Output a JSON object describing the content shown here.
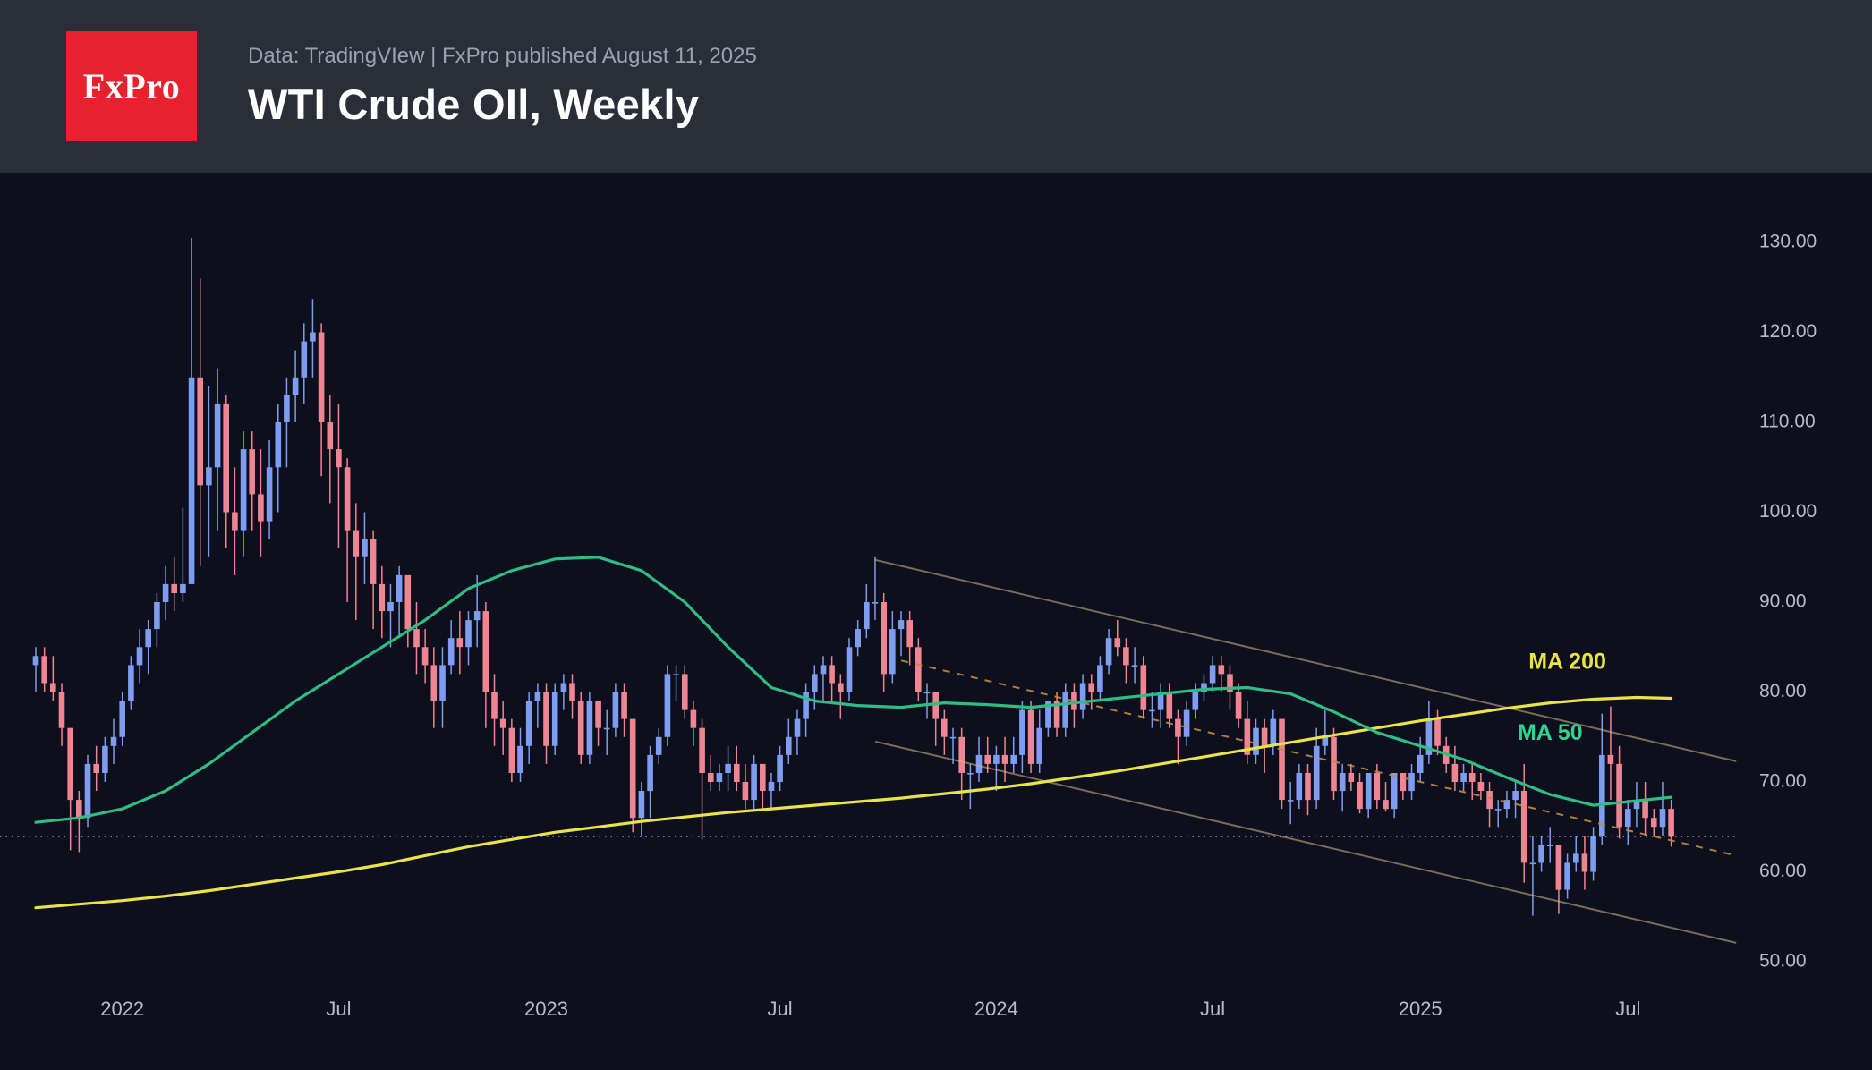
{
  "header": {
    "logo_text": "FxPro",
    "subtitle": "Data: TradingVIew | FxPro published August 11, 2025",
    "title": "WTI Crude OIl, Weekly"
  },
  "chart_data": {
    "type": "candlestick",
    "symbol": "WTI Crude Oil",
    "timeframe": "Weekly",
    "title": "WTI Crude OIl, Weekly",
    "grid": "off",
    "legend_position": "none",
    "price_range": [
      50,
      130
    ],
    "current_price_line": 63.9,
    "y_ticks": [
      {
        "value": 130,
        "label": "130.00"
      },
      {
        "value": 120,
        "label": "120.00"
      },
      {
        "value": 110,
        "label": "110.00"
      },
      {
        "value": 100,
        "label": "100.00"
      },
      {
        "value": 90,
        "label": "90.00"
      },
      {
        "value": 80,
        "label": "80.00"
      },
      {
        "value": 70,
        "label": "70.00"
      },
      {
        "value": 60,
        "label": "60.00"
      },
      {
        "value": 50,
        "label": "50.00"
      }
    ],
    "x_ticks": [
      {
        "label": "2022",
        "index": 10
      },
      {
        "label": "Jul",
        "index": 35
      },
      {
        "label": "2023",
        "index": 59
      },
      {
        "label": "Jul",
        "index": 86
      },
      {
        "label": "2024",
        "index": 111
      },
      {
        "label": "Jul",
        "index": 136
      },
      {
        "label": "2025",
        "index": 160
      },
      {
        "label": "Jul",
        "index": 184
      }
    ],
    "candles": [
      [
        83,
        85,
        80,
        84
      ],
      [
        84,
        85,
        80,
        81
      ],
      [
        81,
        84,
        79,
        80
      ],
      [
        80,
        81,
        74,
        76
      ],
      [
        76,
        76,
        62.4,
        68
      ],
      [
        68,
        69,
        62.2,
        66
      ],
      [
        66,
        73,
        65,
        72
      ],
      [
        72,
        74,
        69,
        71
      ],
      [
        71,
        75,
        70,
        74
      ],
      [
        74,
        77,
        72,
        75
      ],
      [
        75,
        80,
        74,
        79
      ],
      [
        79,
        84,
        78,
        83
      ],
      [
        83,
        87,
        81,
        85
      ],
      [
        85,
        88,
        82,
        87
      ],
      [
        87,
        91,
        85,
        90
      ],
      [
        90,
        94,
        88,
        92
      ],
      [
        92,
        95,
        89,
        91
      ],
      [
        91,
        100.5,
        90,
        92
      ],
      [
        92,
        130.5,
        92,
        115
      ],
      [
        115,
        126,
        94,
        103
      ],
      [
        103,
        114,
        95,
        105
      ],
      [
        105,
        116,
        98,
        112
      ],
      [
        112,
        113,
        96,
        100
      ],
      [
        100,
        105,
        93,
        98
      ],
      [
        98,
        109,
        95,
        107
      ],
      [
        107,
        109,
        98,
        102
      ],
      [
        102,
        107,
        95,
        99
      ],
      [
        99,
        108,
        97,
        105
      ],
      [
        105,
        112,
        100,
        110
      ],
      [
        110,
        115,
        105,
        113
      ],
      [
        113,
        118,
        110,
        115
      ],
      [
        115,
        121,
        112,
        119
      ],
      [
        119,
        123.7,
        115,
        120
      ],
      [
        120,
        121,
        104,
        110
      ],
      [
        110,
        113,
        101,
        107
      ],
      [
        107,
        112,
        96,
        105
      ],
      [
        105,
        106,
        90,
        98
      ],
      [
        98,
        101,
        88,
        95
      ],
      [
        95,
        100,
        92,
        97
      ],
      [
        97,
        98,
        87,
        92
      ],
      [
        92,
        94,
        86,
        89
      ],
      [
        89,
        92,
        85,
        90
      ],
      [
        90,
        94,
        86,
        93
      ],
      [
        93,
        93,
        85,
        87
      ],
      [
        87,
        90,
        82,
        85
      ],
      [
        85,
        87,
        81,
        83
      ],
      [
        83,
        85,
        76,
        79
      ],
      [
        79,
        85,
        76,
        83
      ],
      [
        83,
        88,
        82,
        86
      ],
      [
        86,
        89,
        82,
        85
      ],
      [
        85,
        89,
        83,
        88
      ],
      [
        88,
        93,
        85,
        89
      ],
      [
        89,
        90,
        76,
        80
      ],
      [
        80,
        82,
        74,
        77
      ],
      [
        77,
        79,
        73,
        76
      ],
      [
        76,
        77,
        70,
        71
      ],
      [
        71,
        76,
        70,
        74
      ],
      [
        74,
        80,
        72,
        79
      ],
      [
        79,
        81,
        76,
        80
      ],
      [
        80,
        81,
        72,
        74
      ],
      [
        74,
        81,
        73,
        80
      ],
      [
        80,
        82,
        78,
        81
      ],
      [
        81,
        82,
        77,
        79
      ],
      [
        79,
        80,
        72,
        73
      ],
      [
        73,
        80,
        72,
        79
      ],
      [
        79,
        79,
        74,
        76
      ],
      [
        76,
        78,
        73,
        76
      ],
      [
        76,
        81,
        75,
        80
      ],
      [
        80,
        81,
        75,
        77
      ],
      [
        77,
        77,
        64.4,
        66
      ],
      [
        66,
        70,
        64,
        69
      ],
      [
        69,
        74,
        66,
        73
      ],
      [
        73,
        76,
        72,
        75
      ],
      [
        75,
        83,
        74,
        82
      ],
      [
        82,
        83,
        79,
        82
      ],
      [
        82,
        83,
        77,
        78
      ],
      [
        78,
        79,
        74,
        76
      ],
      [
        76,
        77,
        63.6,
        71
      ],
      [
        71,
        73,
        69,
        70
      ],
      [
        70,
        72,
        69,
        71
      ],
      [
        71,
        74,
        69,
        72
      ],
      [
        72,
        74,
        69,
        70
      ],
      [
        70,
        72,
        67,
        68
      ],
      [
        68,
        73,
        67,
        72
      ],
      [
        72,
        72,
        66.8,
        69
      ],
      [
        69,
        71,
        66.9,
        70
      ],
      [
        70,
        74,
        69,
        73
      ],
      [
        73,
        77,
        72,
        75
      ],
      [
        75,
        78,
        73,
        77
      ],
      [
        77,
        81,
        75,
        80
      ],
      [
        80,
        83,
        78,
        82
      ],
      [
        82,
        84,
        79,
        83
      ],
      [
        83,
        84,
        79,
        81
      ],
      [
        81,
        82,
        77,
        80
      ],
      [
        80,
        86,
        79,
        85
      ],
      [
        85,
        88,
        84,
        87
      ],
      [
        87,
        92,
        86,
        90
      ],
      [
        90,
        95,
        88,
        90
      ],
      [
        90,
        91,
        80,
        82
      ],
      [
        82,
        89,
        81,
        87
      ],
      [
        87,
        89,
        84,
        88
      ],
      [
        88,
        89,
        83,
        85
      ],
      [
        85,
        86,
        79,
        80
      ],
      [
        80,
        81,
        77,
        80
      ],
      [
        80,
        80,
        74,
        77
      ],
      [
        77,
        78,
        73,
        75
      ],
      [
        75,
        76,
        72,
        75
      ],
      [
        75,
        76,
        68,
        71
      ],
      [
        71,
        72,
        67,
        71
      ],
      [
        71,
        75,
        70,
        73
      ],
      [
        73,
        75,
        71,
        72
      ],
      [
        72,
        74,
        69,
        73
      ],
      [
        73,
        75,
        70,
        72
      ],
      [
        72,
        75,
        71,
        73
      ],
      [
        73,
        79,
        71,
        78
      ],
      [
        78,
        79,
        71,
        72
      ],
      [
        72,
        78,
        71,
        76
      ],
      [
        76,
        79,
        75,
        79
      ],
      [
        79,
        80,
        75,
        76
      ],
      [
        76,
        81,
        75,
        80
      ],
      [
        80,
        81,
        76,
        78
      ],
      [
        78,
        82,
        77,
        81
      ],
      [
        81,
        82,
        78,
        80
      ],
      [
        80,
        84,
        79,
        83
      ],
      [
        83,
        87,
        82,
        86
      ],
      [
        86,
        88,
        84,
        85
      ],
      [
        85,
        86,
        81,
        83
      ],
      [
        83,
        85,
        81,
        83
      ],
      [
        83,
        84,
        77,
        78
      ],
      [
        78,
        80,
        76,
        78
      ],
      [
        78,
        81,
        76,
        80
      ],
      [
        80,
        81,
        76,
        77
      ],
      [
        77,
        78,
        72,
        75
      ],
      [
        75,
        79,
        74,
        78
      ],
      [
        78,
        81,
        77,
        80
      ],
      [
        80,
        82,
        79,
        81
      ],
      [
        81,
        84,
        80,
        83
      ],
      [
        83,
        84,
        80,
        82
      ],
      [
        82,
        83,
        78,
        80
      ],
      [
        80,
        81,
        76,
        77
      ],
      [
        77,
        79,
        72,
        73
      ],
      [
        73,
        77,
        72,
        76
      ],
      [
        76,
        77,
        71,
        74
      ],
      [
        74,
        78,
        73,
        77
      ],
      [
        77,
        77,
        67,
        68
      ],
      [
        68,
        70,
        65.3,
        68
      ],
      [
        68,
        72,
        67,
        71
      ],
      [
        71,
        72,
        66.3,
        68
      ],
      [
        68,
        76,
        67,
        74
      ],
      [
        74,
        78,
        73,
        75
      ],
      [
        75,
        76,
        68,
        69
      ],
      [
        69,
        72,
        66.7,
        71
      ],
      [
        71,
        72,
        69,
        70
      ],
      [
        70,
        71,
        66.5,
        67
      ],
      [
        67,
        71,
        66,
        71
      ],
      [
        71,
        72,
        67,
        68
      ],
      [
        68,
        70,
        66.7,
        67
      ],
      [
        67,
        71,
        66,
        71
      ],
      [
        71,
        71,
        68,
        69
      ],
      [
        69,
        72,
        68,
        71
      ],
      [
        71,
        75,
        70,
        73
      ],
      [
        73,
        79,
        72,
        77
      ],
      [
        77,
        78,
        73,
        74
      ],
      [
        74,
        75,
        71,
        72
      ],
      [
        72,
        74,
        69,
        70
      ],
      [
        70,
        72,
        69,
        71
      ],
      [
        71,
        72,
        68,
        70
      ],
      [
        70,
        71,
        68,
        69
      ],
      [
        69,
        70,
        65,
        67
      ],
      [
        67,
        68,
        65,
        67
      ],
      [
        67,
        69,
        66,
        68
      ],
      [
        68,
        70,
        66,
        69
      ],
      [
        69,
        72,
        58.8,
        61
      ],
      [
        61,
        64,
        55.1,
        61
      ],
      [
        61,
        64,
        60,
        63
      ],
      [
        63,
        65,
        61,
        63
      ],
      [
        63,
        63,
        55.3,
        58
      ],
      [
        58,
        62,
        57,
        61
      ],
      [
        61,
        64,
        60,
        62
      ],
      [
        62,
        64,
        58,
        60
      ],
      [
        60,
        65,
        59,
        64
      ],
      [
        64,
        77.6,
        63,
        73
      ],
      [
        73,
        78.4,
        68,
        72
      ],
      [
        72,
        74,
        63.7,
        65
      ],
      [
        65,
        68,
        63,
        67
      ],
      [
        67,
        70,
        65,
        68
      ],
      [
        68,
        70,
        64,
        66
      ],
      [
        66,
        67,
        64,
        65
      ],
      [
        65,
        70,
        64,
        67
      ],
      [
        67,
        68,
        62.8,
        63.9
      ]
    ],
    "ma50": {
      "label": "MA 50",
      "samples": [
        [
          0,
          65.5
        ],
        [
          5,
          66
        ],
        [
          10,
          67
        ],
        [
          15,
          69
        ],
        [
          20,
          72
        ],
        [
          25,
          75.5
        ],
        [
          30,
          79
        ],
        [
          35,
          82
        ],
        [
          40,
          85
        ],
        [
          45,
          88
        ],
        [
          50,
          91.5
        ],
        [
          55,
          93.5
        ],
        [
          60,
          94.8
        ],
        [
          65,
          95
        ],
        [
          70,
          93.5
        ],
        [
          75,
          90
        ],
        [
          80,
          85
        ],
        [
          85,
          80.5
        ],
        [
          90,
          79
        ],
        [
          95,
          78.5
        ],
        [
          100,
          78.3
        ],
        [
          105,
          78.8
        ],
        [
          110,
          78.6
        ],
        [
          115,
          78.3
        ],
        [
          120,
          78.8
        ],
        [
          125,
          79.3
        ],
        [
          130,
          79.8
        ],
        [
          135,
          80.3
        ],
        [
          140,
          80.5
        ],
        [
          145,
          79.8
        ],
        [
          150,
          77.8
        ],
        [
          155,
          75.5
        ],
        [
          160,
          74
        ],
        [
          165,
          72.5
        ],
        [
          170,
          70.5
        ],
        [
          175,
          68.6
        ],
        [
          180,
          67.4
        ],
        [
          185,
          67.9
        ],
        [
          189,
          68.3
        ]
      ]
    },
    "ma200": {
      "label": "MA 200",
      "samples": [
        [
          0,
          56
        ],
        [
          5,
          56.4
        ],
        [
          10,
          56.8
        ],
        [
          15,
          57.3
        ],
        [
          20,
          57.9
        ],
        [
          25,
          58.6
        ],
        [
          30,
          59.3
        ],
        [
          35,
          60
        ],
        [
          40,
          60.8
        ],
        [
          45,
          61.8
        ],
        [
          50,
          62.8
        ],
        [
          55,
          63.6
        ],
        [
          60,
          64.4
        ],
        [
          65,
          65
        ],
        [
          70,
          65.6
        ],
        [
          75,
          66.1
        ],
        [
          80,
          66.6
        ],
        [
          85,
          67
        ],
        [
          90,
          67.4
        ],
        [
          95,
          67.8
        ],
        [
          100,
          68.2
        ],
        [
          105,
          68.7
        ],
        [
          110,
          69.2
        ],
        [
          115,
          69.8
        ],
        [
          120,
          70.5
        ],
        [
          125,
          71.2
        ],
        [
          130,
          72
        ],
        [
          135,
          72.8
        ],
        [
          140,
          73.6
        ],
        [
          145,
          74.4
        ],
        [
          150,
          75.2
        ],
        [
          155,
          76
        ],
        [
          160,
          76.8
        ],
        [
          165,
          77.5
        ],
        [
          170,
          78.2
        ],
        [
          175,
          78.8
        ],
        [
          180,
          79.2
        ],
        [
          185,
          79.4
        ],
        [
          189,
          79.3
        ]
      ]
    },
    "ma_labels": [
      {
        "text": "MA 200",
        "color": "#e9e34b",
        "index": 177,
        "price": 82.6
      },
      {
        "text": "MA 50",
        "color": "#2fd38f",
        "index": 175,
        "price": 74.7
      }
    ],
    "trendlines": [
      {
        "name": "channel-upper",
        "style": "solid",
        "from": [
          97,
          94.7
        ],
        "to": [
          196.5,
          72.3
        ]
      },
      {
        "name": "channel-lower",
        "style": "solid",
        "from": [
          97,
          74.5
        ],
        "to": [
          196.5,
          52.1
        ]
      },
      {
        "name": "channel-median",
        "style": "dashed",
        "from": [
          100,
          83.5
        ],
        "to": [
          196.5,
          61.8
        ]
      }
    ],
    "colors": {
      "up": "#7e9cf0",
      "down": "#ef8592",
      "ma50": "#2ebd85",
      "ma200": "#e9e34b",
      "channel": "#d6b88c",
      "channel_median": "#c08a45",
      "current_price": "#9db2e8",
      "background": "#0d0f1d",
      "header_background": "#2a2e39",
      "logo_background": "#e8212e",
      "axis_text": "#b7bcc8"
    }
  }
}
